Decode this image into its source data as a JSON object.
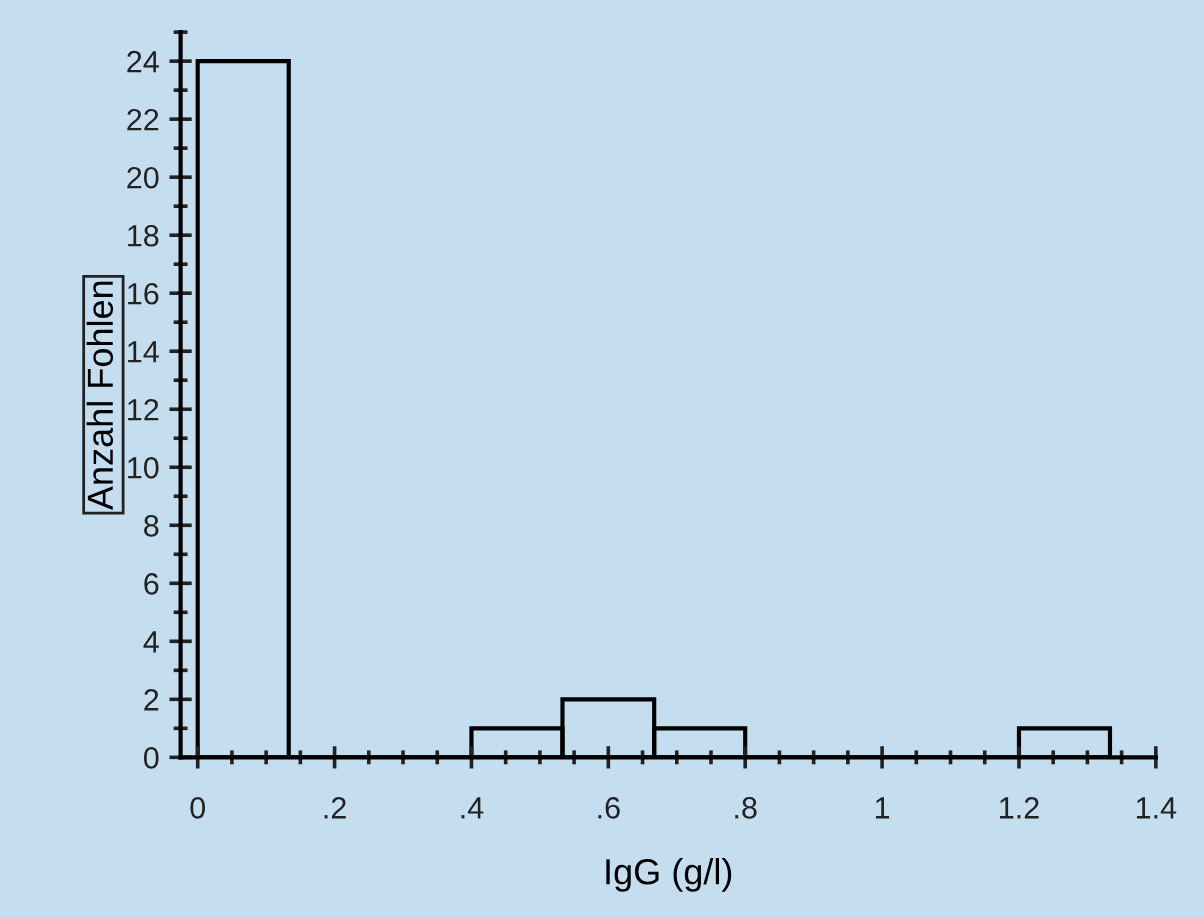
{
  "chart_data": {
    "type": "histogram",
    "xlabel": "IgG (g/l)",
    "ylabel": "Anzahl Fohlen",
    "bins": [
      0,
      0.133,
      0.4,
      0.533,
      0.667,
      0.8,
      1.2,
      1.333
    ],
    "values": [
      24,
      0,
      1,
      2,
      1,
      0,
      1
    ],
    "color": "#000000",
    "xlim": [
      -0.025,
      1.4
    ],
    "xticks": [
      {
        "value": 0,
        "label": "0"
      },
      {
        "value": 0.2,
        "label": ".2"
      },
      {
        "value": 0.4,
        "label": ".4"
      },
      {
        "value": 0.6,
        "label": ".6"
      },
      {
        "value": 0.8,
        "label": ".8"
      },
      {
        "value": 1,
        "label": "1"
      },
      {
        "value": 1.2,
        "label": "1.2"
      },
      {
        "value": 1.4,
        "label": "1.4"
      }
    ],
    "ylim": [
      0,
      25
    ],
    "yticks": [
      0,
      2,
      4,
      6,
      8,
      10,
      12,
      14,
      16,
      18,
      20,
      22,
      24
    ],
    "grid": false
  }
}
